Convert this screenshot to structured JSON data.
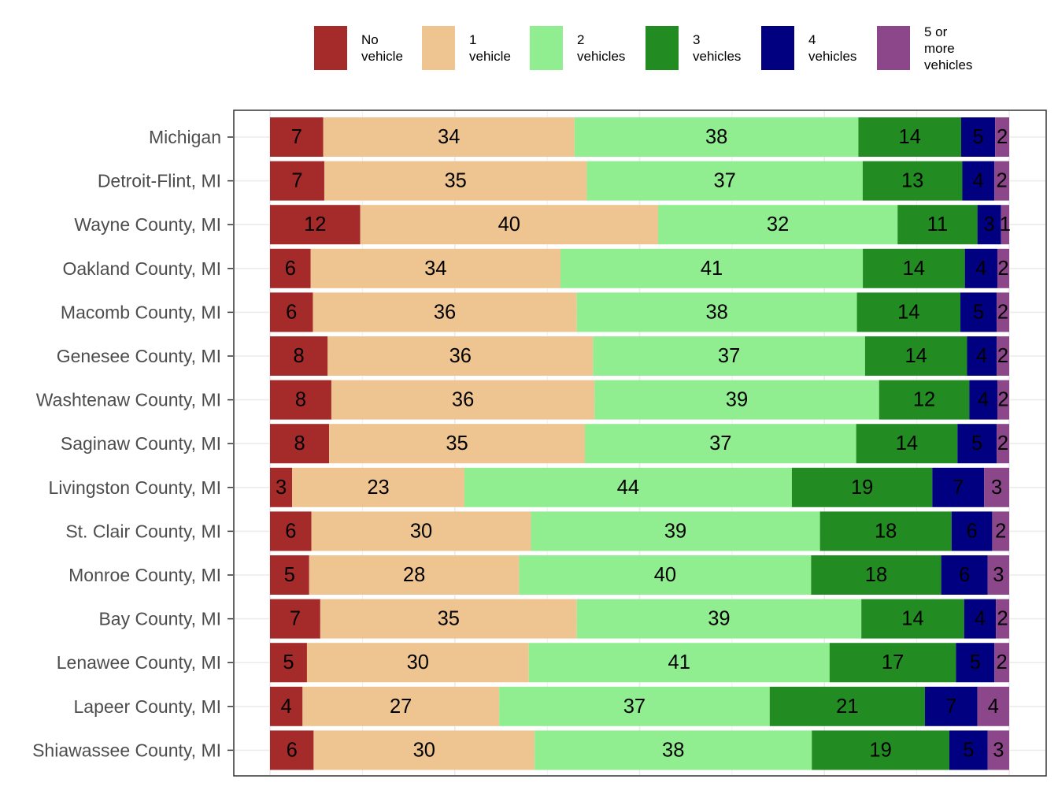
{
  "chart_data": {
    "type": "bar",
    "orientation": "horizontal",
    "stacked": true,
    "normalized_percent": true,
    "title": "",
    "xlabel": "",
    "ylabel": "",
    "xlim": [
      0,
      100
    ],
    "grid": true,
    "legend_position": "top",
    "categories": [
      "Michigan",
      "Detroit-Flint, MI",
      "Wayne County, MI",
      "Oakland County, MI",
      "Macomb County, MI",
      "Genesee County, MI",
      "Washtenaw County, MI",
      "Saginaw County, MI",
      "Livingston County, MI",
      "St. Clair County, MI",
      "Monroe County, MI",
      "Bay County, MI",
      "Lenawee County, MI",
      "Lapeer County, MI",
      "Shiawassee County, MI"
    ],
    "series": [
      {
        "name": "No\nvehicle",
        "color": "#a52a2a",
        "values": [
          7.2,
          7.3,
          12.2,
          5.5,
          5.8,
          7.8,
          8.3,
          8.0,
          3.0,
          5.6,
          5.3,
          6.8,
          5.0,
          4.4,
          5.9
        ]
      },
      {
        "name": "1\nvehicle",
        "color": "#eec591",
        "values": [
          34.0,
          35.3,
          40.3,
          33.8,
          35.7,
          35.9,
          35.6,
          34.6,
          23.3,
          29.7,
          28.4,
          34.7,
          30.0,
          26.6,
          29.9
        ]
      },
      {
        "name": "2\nvehicles",
        "color": "#90ee90",
        "values": [
          38.4,
          37.1,
          32.4,
          40.9,
          37.9,
          36.8,
          38.5,
          36.7,
          44.3,
          39.1,
          39.5,
          38.5,
          40.7,
          36.6,
          37.5
        ]
      },
      {
        "name": "3\nvehicles",
        "color": "#228b22",
        "values": [
          13.9,
          13.4,
          10.8,
          13.8,
          14.0,
          13.8,
          12.2,
          13.7,
          19.0,
          17.8,
          17.6,
          13.9,
          17.1,
          21.0,
          18.6
        ]
      },
      {
        "name": "4\nvehicles",
        "color": "#000080",
        "values": [
          4.6,
          4.3,
          3.2,
          4.4,
          4.9,
          4.0,
          3.8,
          5.3,
          7.0,
          5.5,
          6.3,
          4.3,
          5.2,
          7.1,
          5.2
        ]
      },
      {
        "name": "5 or\nmore\nvehicles",
        "color": "#8b4789",
        "values": [
          1.9,
          2.0,
          1.1,
          1.6,
          1.7,
          1.7,
          1.6,
          1.7,
          3.4,
          2.3,
          2.9,
          1.8,
          2.0,
          4.3,
          2.9
        ]
      }
    ]
  }
}
